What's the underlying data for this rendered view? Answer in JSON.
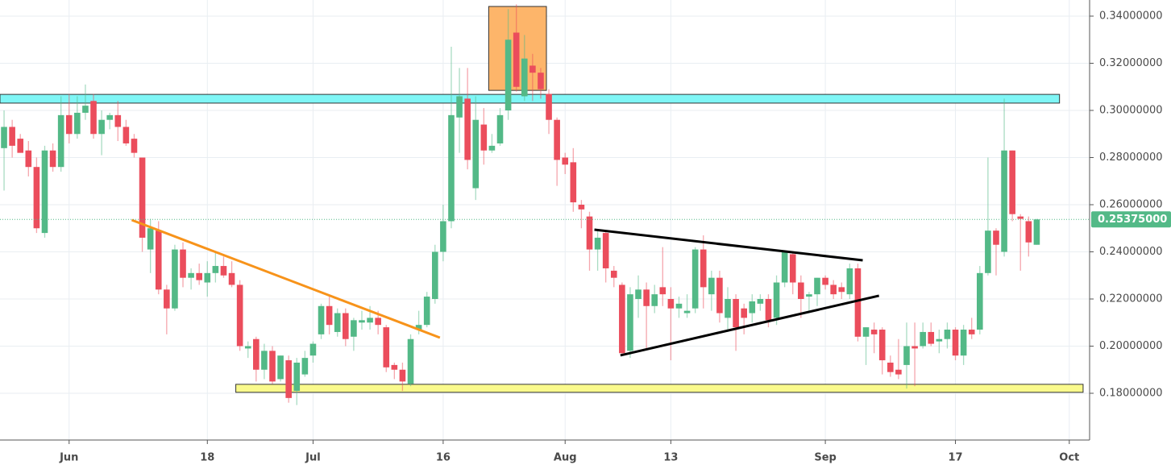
{
  "chart_data": {
    "type": "candlestick",
    "up_color": "#53b987",
    "down_color": "#eb4d5c",
    "categories": [
      null,
      null,
      null,
      null,
      null,
      null,
      null,
      null,
      "Jun",
      null,
      null,
      null,
      null,
      null,
      null,
      null,
      null,
      null,
      null,
      null,
      null,
      null,
      null,
      null,
      null,
      "18",
      null,
      null,
      null,
      null,
      null,
      null,
      null,
      null,
      null,
      null,
      null,
      null,
      "Jul",
      null,
      null,
      null,
      null,
      null,
      null,
      null,
      null,
      null,
      null,
      null,
      null,
      null,
      null,
      null,
      "16",
      null,
      null,
      null,
      null,
      null,
      null,
      null,
      null,
      null,
      null,
      null,
      null,
      null,
      null,
      "Aug",
      null,
      null,
      null,
      null,
      null,
      null,
      null,
      null,
      null,
      null,
      null,
      null,
      "13",
      null,
      null,
      null,
      null,
      null,
      null,
      null,
      null,
      null,
      null,
      null,
      null,
      null,
      null,
      null,
      null,
      null,
      null,
      "Sep",
      null,
      null,
      null,
      null,
      null,
      null,
      null,
      null,
      null,
      null,
      null,
      null,
      null,
      null,
      null,
      "17",
      null,
      null,
      null,
      null,
      null,
      null,
      null,
      null,
      null,
      null,
      null,
      null,
      null,
      "Oct",
      null,
      null
    ],
    "open": [
      0.284,
      0.293,
      0.288,
      0.283,
      0.276,
      0.248,
      0.283,
      0.276,
      0.298,
      0.29,
      0.299,
      0.304,
      0.29,
      0.296,
      0.298,
      0.293,
      0.288,
      0.28,
      0.241,
      0.249,
      0.224,
      0.216,
      0.241,
      0.229,
      0.231,
      0.227,
      0.231,
      0.234,
      0.231,
      0.226,
      0.199,
      0.203,
      0.19,
      0.198,
      0.186,
      0.194,
      0.181,
      0.188,
      0.196,
      0.205,
      0.217,
      0.206,
      0.214,
      0.204,
      0.21,
      0.21,
      0.212,
      0.208,
      0.192,
      0.19,
      0.184,
      0.207,
      0.209,
      0.22,
      0.24,
      0.253,
      0.297,
      0.305,
      0.267,
      0.294,
      0.283,
      0.286,
      0.3,
      0.333,
      0.306,
      0.319,
      0.316,
      0.307,
      0.296,
      0.28,
      0.278,
      0.26,
      0.255,
      0.241,
      0.248,
      0.232,
      0.226,
      0.198,
      0.22,
      0.224,
      0.217,
      0.225,
      0.22,
      0.216,
      0.214,
      0.216,
      0.241,
      0.222,
      0.229,
      0.212,
      0.22,
      0.216,
      0.214,
      0.218,
      0.22,
      0.212,
      0.227,
      0.239,
      0.227,
      0.221,
      0.222,
      0.229,
      0.226,
      0.225,
      0.222,
      0.233,
      0.204,
      0.207,
      0.207,
      0.193,
      0.19,
      0.192,
      0.2,
      0.2,
      0.206,
      0.202,
      0.203,
      0.207,
      0.196,
      0.207,
      0.207,
      0.231,
      0.249,
      0.24,
      0.283,
      0.255,
      0.253,
      0.243,
      null,
      null,
      null,
      null,
      null,
      null
    ],
    "high": [
      0.3,
      0.296,
      0.29,
      0.287,
      0.28,
      0.285,
      0.286,
      0.306,
      0.307,
      0.306,
      0.311,
      0.307,
      0.3,
      0.299,
      0.304,
      0.296,
      0.29,
      0.28,
      0.254,
      0.253,
      0.226,
      0.243,
      0.244,
      0.233,
      0.235,
      0.236,
      0.24,
      0.238,
      0.236,
      0.228,
      0.202,
      0.204,
      0.201,
      0.2,
      0.196,
      0.196,
      0.195,
      0.198,
      0.202,
      0.218,
      0.221,
      0.216,
      0.216,
      0.212,
      0.215,
      0.217,
      0.215,
      0.209,
      0.193,
      0.193,
      0.205,
      0.215,
      0.223,
      0.243,
      0.26,
      0.327,
      0.318,
      0.318,
      0.306,
      0.301,
      0.29,
      0.301,
      0.343,
      0.345,
      0.332,
      0.324,
      0.318,
      0.309,
      0.297,
      0.282,
      0.284,
      0.262,
      0.257,
      0.249,
      0.249,
      0.234,
      0.227,
      0.225,
      0.23,
      0.227,
      0.226,
      0.242,
      0.225,
      0.221,
      0.222,
      0.242,
      0.247,
      0.232,
      0.232,
      0.225,
      0.222,
      0.218,
      0.222,
      0.222,
      0.222,
      0.23,
      0.24,
      0.24,
      0.23,
      0.223,
      0.229,
      0.23,
      0.228,
      0.227,
      0.235,
      0.235,
      0.208,
      0.21,
      0.208,
      0.196,
      0.203,
      0.21,
      0.21,
      0.21,
      0.21,
      0.207,
      0.21,
      0.208,
      0.209,
      0.212,
      0.234,
      0.28,
      0.25,
      0.305,
      0.283,
      0.256,
      0.255,
      0.254,
      null,
      null,
      null,
      null,
      null,
      null
    ],
    "low": [
      0.266,
      0.28,
      0.283,
      0.272,
      0.248,
      0.246,
      0.274,
      0.274,
      0.286,
      0.288,
      0.296,
      0.288,
      0.281,
      0.292,
      0.287,
      0.285,
      0.28,
      0.24,
      0.231,
      0.222,
      0.205,
      0.215,
      0.225,
      0.224,
      0.226,
      0.221,
      0.227,
      0.229,
      0.225,
      0.198,
      0.195,
      0.185,
      0.186,
      0.184,
      0.185,
      0.176,
      0.175,
      0.187,
      0.193,
      0.203,
      0.205,
      0.204,
      0.2,
      0.198,
      0.207,
      0.207,
      0.205,
      0.189,
      0.186,
      0.181,
      0.183,
      0.205,
      0.208,
      0.218,
      0.236,
      0.25,
      0.282,
      0.275,
      0.262,
      0.277,
      0.282,
      0.285,
      0.296,
      0.308,
      0.304,
      0.304,
      0.305,
      0.29,
      0.268,
      0.273,
      0.257,
      0.25,
      0.232,
      0.232,
      0.227,
      0.225,
      0.196,
      0.195,
      0.212,
      0.199,
      0.214,
      0.217,
      0.194,
      0.212,
      0.212,
      0.214,
      0.216,
      0.215,
      0.21,
      0.206,
      0.198,
      0.205,
      0.21,
      0.215,
      0.208,
      0.209,
      0.225,
      0.222,
      0.212,
      0.214,
      0.217,
      0.224,
      0.22,
      0.22,
      0.22,
      0.202,
      0.192,
      0.197,
      0.188,
      0.187,
      0.186,
      0.182,
      0.183,
      0.199,
      0.2,
      0.197,
      0.199,
      0.194,
      0.192,
      0.203,
      0.205,
      0.23,
      0.23,
      0.238,
      0.253,
      0.232,
      0.238,
      0.243,
      null,
      null,
      null,
      null,
      null,
      null
    ],
    "close": [
      0.293,
      0.285,
      0.282,
      0.276,
      0.25,
      0.283,
      0.276,
      0.298,
      0.29,
      0.299,
      0.302,
      0.29,
      0.296,
      0.298,
      0.293,
      0.286,
      0.282,
      0.246,
      0.25,
      0.224,
      0.216,
      0.241,
      0.229,
      0.231,
      0.228,
      0.231,
      0.234,
      0.23,
      0.226,
      0.2,
      0.2,
      0.19,
      0.198,
      0.185,
      0.196,
      0.178,
      0.193,
      0.195,
      0.201,
      0.217,
      0.209,
      0.214,
      0.203,
      0.211,
      0.211,
      0.212,
      0.209,
      0.191,
      0.19,
      0.185,
      0.203,
      0.209,
      0.221,
      0.24,
      0.253,
      0.298,
      0.306,
      0.279,
      0.296,
      0.283,
      0.285,
      0.298,
      0.33,
      0.31,
      0.322,
      0.316,
      0.309,
      0.296,
      0.279,
      0.277,
      0.261,
      0.258,
      0.241,
      0.246,
      0.233,
      0.229,
      0.197,
      0.222,
      0.224,
      0.217,
      0.222,
      0.222,
      0.216,
      0.218,
      0.215,
      0.241,
      0.225,
      0.229,
      0.214,
      0.22,
      0.208,
      0.212,
      0.219,
      0.22,
      0.211,
      0.227,
      0.24,
      0.227,
      0.22,
      0.222,
      0.229,
      0.226,
      0.222,
      0.223,
      0.233,
      0.204,
      0.208,
      0.205,
      0.194,
      0.189,
      0.188,
      0.2,
      0.199,
      0.206,
      0.201,
      0.203,
      0.207,
      0.196,
      0.207,
      0.205,
      0.231,
      0.249,
      0.243,
      0.283,
      0.256,
      0.254,
      0.244,
      0.25375,
      null,
      null,
      null,
      null,
      null,
      null
    ],
    "ylim": [
      0.16017,
      0.34684
    ],
    "yticks": [
      {
        "value": 0.18,
        "label": "0.18000000"
      },
      {
        "value": 0.2,
        "label": "0.20000000"
      },
      {
        "value": 0.22,
        "label": "0.22000000"
      },
      {
        "value": 0.24,
        "label": "0.24000000"
      },
      {
        "value": 0.26,
        "label": "0.26000000"
      },
      {
        "value": 0.28,
        "label": "0.28000000"
      },
      {
        "value": 0.3,
        "label": "0.30000000"
      },
      {
        "value": 0.32,
        "label": "0.32000000"
      },
      {
        "value": 0.34,
        "label": "0.34000000"
      }
    ],
    "grid": true,
    "last_price": {
      "value": 0.25375,
      "label": "0.25375000",
      "color": "#53b987"
    },
    "zones": [
      {
        "color": "#7ff6f6",
        "x": [
          -0.5,
          129.8
        ],
        "y": [
          0.3031,
          0.3068
        ]
      },
      {
        "color": "#fdb56a",
        "x": [
          59.6,
          66.7
        ],
        "y": [
          0.3085,
          0.3441
        ]
      },
      {
        "color": "#fafa8c",
        "x": [
          28.5,
          132.7
        ],
        "y": [
          0.1804,
          0.1838
        ]
      }
    ],
    "trendlines": [
      {
        "color": "#f7931a",
        "x": [
          15.7,
          53.6
        ],
        "y": [
          0.2535,
          0.2036
        ]
      },
      {
        "color": "#000000",
        "x": [
          72.6,
          105.6
        ],
        "y": [
          0.2494,
          0.2364
        ]
      },
      {
        "color": "#000000",
        "x": [
          75.8,
          107.6
        ],
        "y": [
          0.1961,
          0.2214
        ]
      }
    ]
  }
}
